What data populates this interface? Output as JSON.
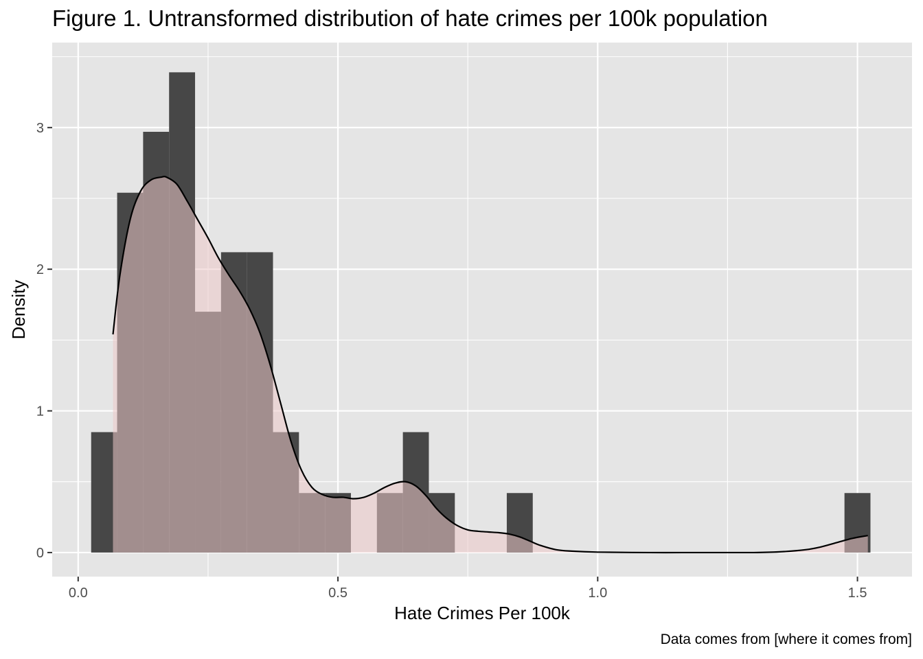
{
  "chart_data": {
    "type": "histogram",
    "title": "Figure 1. Untransformed distribution of hate crimes per 100k population",
    "caption": "Data comes from [where it comes from]",
    "xlabel": "Hate Crimes Per 100k",
    "ylabel": "Density",
    "xlim": [
      -0.05,
      1.605
    ],
    "ylim": [
      -0.17,
      3.6
    ],
    "x_ticks": [
      0.0,
      0.5,
      1.0,
      1.5
    ],
    "x_tick_labels": [
      "0.0",
      "0.5",
      "1.0",
      "1.5"
    ],
    "y_ticks": [
      0,
      1,
      2,
      3
    ],
    "y_tick_labels": [
      "0",
      "1",
      "2",
      "3"
    ],
    "grid": true,
    "bin_width": 0.05,
    "histogram": {
      "bins": [
        {
          "x0": 0.025,
          "x1": 0.075,
          "density": 0.85
        },
        {
          "x0": 0.075,
          "x1": 0.125,
          "density": 2.54
        },
        {
          "x0": 0.125,
          "x1": 0.175,
          "density": 2.97
        },
        {
          "x0": 0.175,
          "x1": 0.225,
          "density": 3.39
        },
        {
          "x0": 0.225,
          "x1": 0.275,
          "density": 1.7
        },
        {
          "x0": 0.275,
          "x1": 0.325,
          "density": 2.12
        },
        {
          "x0": 0.325,
          "x1": 0.375,
          "density": 2.12
        },
        {
          "x0": 0.375,
          "x1": 0.425,
          "density": 0.85
        },
        {
          "x0": 0.425,
          "x1": 0.475,
          "density": 0.42
        },
        {
          "x0": 0.475,
          "x1": 0.525,
          "density": 0.42
        },
        {
          "x0": 0.575,
          "x1": 0.625,
          "density": 0.42
        },
        {
          "x0": 0.625,
          "x1": 0.675,
          "density": 0.85
        },
        {
          "x0": 0.675,
          "x1": 0.725,
          "density": 0.42
        },
        {
          "x0": 0.825,
          "x1": 0.875,
          "density": 0.42
        },
        {
          "x0": 1.475,
          "x1": 1.525,
          "density": 0.42
        }
      ]
    },
    "density_curve": {
      "x": [
        0.067,
        0.08,
        0.1,
        0.12,
        0.14,
        0.16,
        0.17,
        0.19,
        0.21,
        0.23,
        0.25,
        0.27,
        0.29,
        0.31,
        0.33,
        0.35,
        0.37,
        0.39,
        0.41,
        0.43,
        0.45,
        0.47,
        0.49,
        0.51,
        0.53,
        0.55,
        0.57,
        0.59,
        0.61,
        0.63,
        0.65,
        0.67,
        0.69,
        0.71,
        0.73,
        0.75,
        0.77,
        0.79,
        0.81,
        0.83,
        0.85,
        0.87,
        0.89,
        0.92,
        0.95,
        1.0,
        1.1,
        1.2,
        1.3,
        1.35,
        1.4,
        1.43,
        1.46,
        1.49,
        1.52
      ],
      "y": [
        1.54,
        1.95,
        2.35,
        2.55,
        2.63,
        2.65,
        2.65,
        2.6,
        2.48,
        2.35,
        2.22,
        2.08,
        1.96,
        1.85,
        1.72,
        1.55,
        1.32,
        1.05,
        0.78,
        0.58,
        0.46,
        0.41,
        0.39,
        0.39,
        0.38,
        0.39,
        0.42,
        0.46,
        0.49,
        0.5,
        0.47,
        0.4,
        0.31,
        0.24,
        0.19,
        0.16,
        0.15,
        0.145,
        0.14,
        0.13,
        0.11,
        0.08,
        0.05,
        0.02,
        0.01,
        0.003,
        0.0,
        0.0,
        0.0,
        0.005,
        0.02,
        0.04,
        0.07,
        0.1,
        0.12
      ]
    },
    "colors": {
      "panel_background": "#e5e5e5",
      "grid_line": "#ffffff",
      "histogram_fill": "#474747",
      "density_fill": "#ecc8c8",
      "density_fill_opacity": 0.55,
      "density_line": "#000000",
      "tick_label": "#4d4d4d",
      "tick_mark": "#333333"
    }
  }
}
